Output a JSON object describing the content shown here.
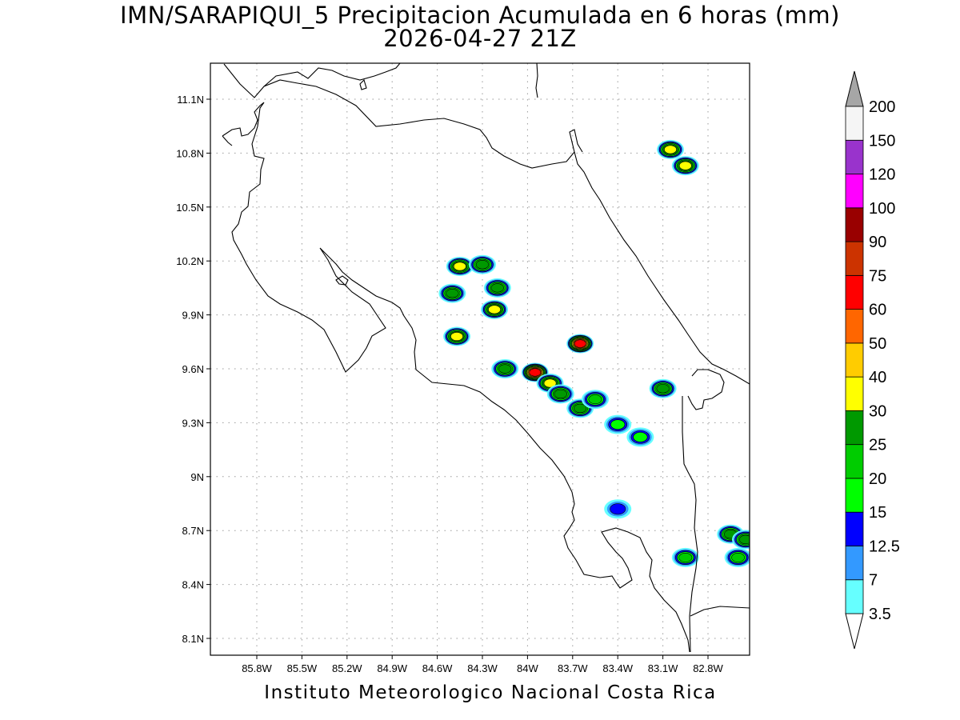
{
  "title_line1": "IMN/SARAPIQUI_5 Precipitacion Acumulada en 6 horas (mm)",
  "title_line2": "2026-04-27 21Z",
  "footer": "Instituto Meteorologico Nacional Costa Rica",
  "map": {
    "lon_ticks": [
      "85.8W",
      "85.5W",
      "85.2W",
      "84.9W",
      "84.6W",
      "84.3W",
      "84W",
      "83.7W",
      "83.4W",
      "83.1W",
      "82.8W"
    ],
    "lat_ticks": [
      "11.1N",
      "10.8N",
      "10.5N",
      "10.2N",
      "9.9N",
      "9.6N",
      "9.3N",
      "9N",
      "8.7N",
      "8.4N",
      "8.1N"
    ],
    "colorbar": {
      "levels": [
        "3.5",
        "7",
        "12.5",
        "15",
        "20",
        "25",
        "30",
        "40",
        "50",
        "60",
        "75",
        "90",
        "100",
        "120",
        "150",
        "200"
      ],
      "colors": [
        "#66ffff",
        "#3399ff",
        "#0000ff",
        "#00ff00",
        "#00cc00",
        "#009900",
        "#ffff00",
        "#ffcc00",
        "#ff6600",
        "#ff0000",
        "#cc3300",
        "#990000",
        "#ff00ff",
        "#9933cc",
        "#f5f5f5"
      ],
      "top_triangle_color": "#a6a6a6",
      "bottom_triangle_color": "#ffffff"
    },
    "precip_cells": [
      {
        "lon": -83.05,
        "lat": 10.82,
        "peak": "30"
      },
      {
        "lon": -82.95,
        "lat": 10.73,
        "peak": "30"
      },
      {
        "lon": -84.45,
        "lat": 10.17,
        "peak": "30"
      },
      {
        "lon": -84.3,
        "lat": 10.18,
        "peak": "25"
      },
      {
        "lon": -84.2,
        "lat": 10.05,
        "peak": "25"
      },
      {
        "lon": -84.5,
        "lat": 10.02,
        "peak": "25"
      },
      {
        "lon": -84.22,
        "lat": 9.93,
        "peak": "30"
      },
      {
        "lon": -84.47,
        "lat": 9.78,
        "peak": "30"
      },
      {
        "lon": -83.65,
        "lat": 9.74,
        "peak": "60"
      },
      {
        "lon": -84.15,
        "lat": 9.6,
        "peak": "25"
      },
      {
        "lon": -83.95,
        "lat": 9.58,
        "peak": "60"
      },
      {
        "lon": -83.85,
        "lat": 9.52,
        "peak": "30"
      },
      {
        "lon": -83.78,
        "lat": 9.46,
        "peak": "25"
      },
      {
        "lon": -83.65,
        "lat": 9.38,
        "peak": "25"
      },
      {
        "lon": -83.55,
        "lat": 9.43,
        "peak": "20"
      },
      {
        "lon": -83.1,
        "lat": 9.49,
        "peak": "25"
      },
      {
        "lon": -83.4,
        "lat": 9.29,
        "peak": "15"
      },
      {
        "lon": -83.25,
        "lat": 9.22,
        "peak": "15"
      },
      {
        "lon": -82.95,
        "lat": 8.55,
        "peak": "20"
      },
      {
        "lon": -82.65,
        "lat": 8.68,
        "peak": "25"
      },
      {
        "lon": -82.6,
        "lat": 8.55,
        "peak": "20"
      },
      {
        "lon": -82.55,
        "lat": 8.65,
        "peak": "25"
      },
      {
        "lon": -83.4,
        "lat": 8.82,
        "peak": "12.5"
      }
    ]
  }
}
